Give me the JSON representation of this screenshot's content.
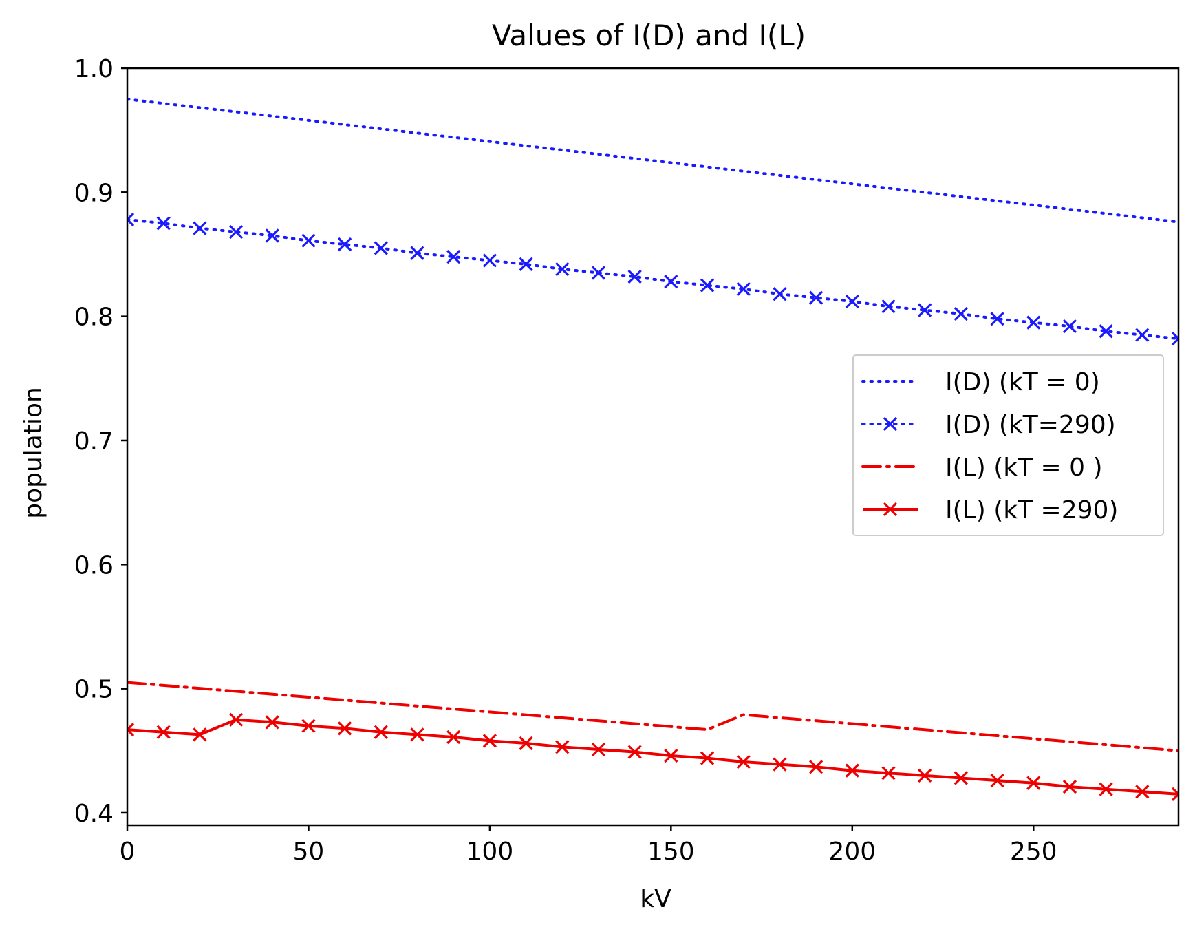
{
  "chart_data": {
    "type": "line",
    "title": "Values of I(D) and I(L)",
    "xlabel": "kV",
    "ylabel": "population",
    "xlim": [
      0,
      290
    ],
    "ylim": [
      0.39,
      1.0
    ],
    "x_ticks": [
      0,
      50,
      100,
      150,
      200,
      250
    ],
    "x_tick_labels": [
      "0",
      "50",
      "100",
      "150",
      "200",
      "250"
    ],
    "y_ticks": [
      0.4,
      0.5,
      0.6,
      0.7,
      0.8,
      0.9,
      1.0
    ],
    "y_tick_labels": [
      "0.4",
      "0.5",
      "0.6",
      "0.7",
      "0.8",
      "0.9",
      "1.0"
    ],
    "grid": false,
    "legend_position": "center-right",
    "colors": {
      "blue": "#1a1aff",
      "red": "#ee0000"
    },
    "series": [
      {
        "name": "I(D) (kT = 0)",
        "color": "#1a1aff",
        "style": "dotted",
        "marker": "none",
        "x": [
          0,
          290
        ],
        "values": [
          0.975,
          0.876
        ]
      },
      {
        "name": "I(D) (kT=290)",
        "color": "#1a1aff",
        "style": "dotted",
        "marker": "x",
        "x": [
          0,
          10,
          20,
          30,
          40,
          50,
          60,
          70,
          80,
          90,
          100,
          110,
          120,
          130,
          140,
          150,
          160,
          170,
          180,
          190,
          200,
          210,
          220,
          230,
          240,
          250,
          260,
          270,
          280,
          290
        ],
        "values": [
          0.878,
          0.875,
          0.871,
          0.868,
          0.865,
          0.861,
          0.858,
          0.855,
          0.851,
          0.848,
          0.845,
          0.842,
          0.838,
          0.835,
          0.832,
          0.828,
          0.825,
          0.822,
          0.818,
          0.815,
          0.812,
          0.808,
          0.805,
          0.802,
          0.798,
          0.795,
          0.792,
          0.788,
          0.785,
          0.782
        ]
      },
      {
        "name": "I(L) (kT = 0 )",
        "color": "#ee0000",
        "style": "dashdot",
        "marker": "none",
        "x": [
          0,
          160,
          170,
          290
        ],
        "values": [
          0.505,
          0.467,
          0.479,
          0.45
        ]
      },
      {
        "name": "I(L) (kT =290)",
        "color": "#ee0000",
        "style": "solid",
        "marker": "x",
        "x": [
          0,
          10,
          20,
          30,
          40,
          50,
          60,
          70,
          80,
          90,
          100,
          110,
          120,
          130,
          140,
          150,
          160,
          170,
          180,
          190,
          200,
          210,
          220,
          230,
          240,
          250,
          260,
          270,
          280,
          290
        ],
        "values": [
          0.467,
          0.465,
          0.463,
          0.475,
          0.473,
          0.47,
          0.468,
          0.465,
          0.463,
          0.461,
          0.458,
          0.456,
          0.453,
          0.451,
          0.449,
          0.446,
          0.444,
          0.441,
          0.439,
          0.437,
          0.434,
          0.432,
          0.43,
          0.428,
          0.426,
          0.424,
          0.421,
          0.419,
          0.417,
          0.415
        ]
      }
    ]
  }
}
